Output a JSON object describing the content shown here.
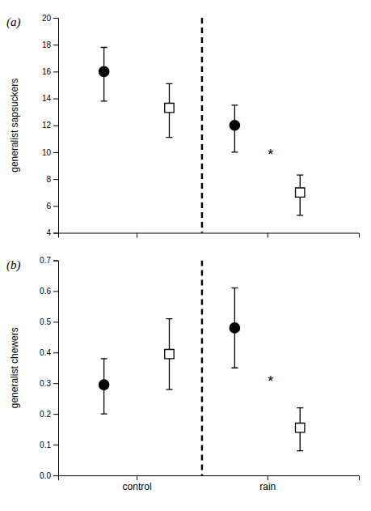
{
  "chart_data": [
    {
      "type": "scatter",
      "title": "(a)",
      "ylabel": "generalist sapsuckers",
      "xlim": [
        0.3,
        4.9
      ],
      "xticks": [
        1.5,
        3.5
      ],
      "tick_labels": "y",
      "ylim": [
        4,
        20
      ],
      "yticks": [
        4,
        6,
        8,
        10,
        12,
        14,
        16,
        18,
        20
      ],
      "color": "#000000",
      "series": [
        {
          "marker": "circle",
          "x": [
            1,
            3
          ],
          "values": [
            16.0,
            12.0
          ],
          "error_low": [
            2.2,
            2.0
          ],
          "error_high": [
            1.8,
            1.5
          ]
        },
        {
          "marker": "square-open",
          "x": [
            2,
            4
          ],
          "values": [
            13.3,
            7.0
          ],
          "error_low": [
            2.2,
            1.7
          ],
          "error_high": [
            1.8,
            1.3
          ]
        }
      ],
      "annotations": [
        {
          "x": 2.5,
          "line_style": "dashed"
        },
        {
          "text": "*",
          "x": 3.55,
          "y": 9.8
        }
      ]
    },
    {
      "type": "scatter",
      "title": "(b)",
      "ylabel": "generalist chewers",
      "xlim": [
        0.3,
        4.9
      ],
      "xticks": [
        {
          "value": 1.5,
          "label": "control"
        },
        {
          "value": 3.5,
          "label": "rain"
        }
      ],
      "ylim": [
        0,
        0.7
      ],
      "yticks": [
        {
          "value": 0,
          "label": "0.0"
        },
        0.1,
        0.2,
        0.3,
        0.4,
        0.5,
        0.6,
        0.7
      ],
      "color": "#000000",
      "series": [
        {
          "marker": "circle",
          "x": [
            1,
            3
          ],
          "values": [
            0.295,
            0.48
          ],
          "error_low": [
            0.095,
            0.13
          ],
          "error_high": [
            0.085,
            0.13
          ]
        },
        {
          "marker": "square-open",
          "x": [
            2,
            4
          ],
          "values": [
            0.395,
            0.155
          ],
          "error_low": [
            0.115,
            0.075
          ],
          "error_high": [
            0.115,
            0.065
          ]
        }
      ],
      "annotations": [
        {
          "x": 2.5,
          "line_style": "dashed"
        },
        {
          "text": "*",
          "x": 3.55,
          "y": 0.305
        }
      ]
    }
  ]
}
